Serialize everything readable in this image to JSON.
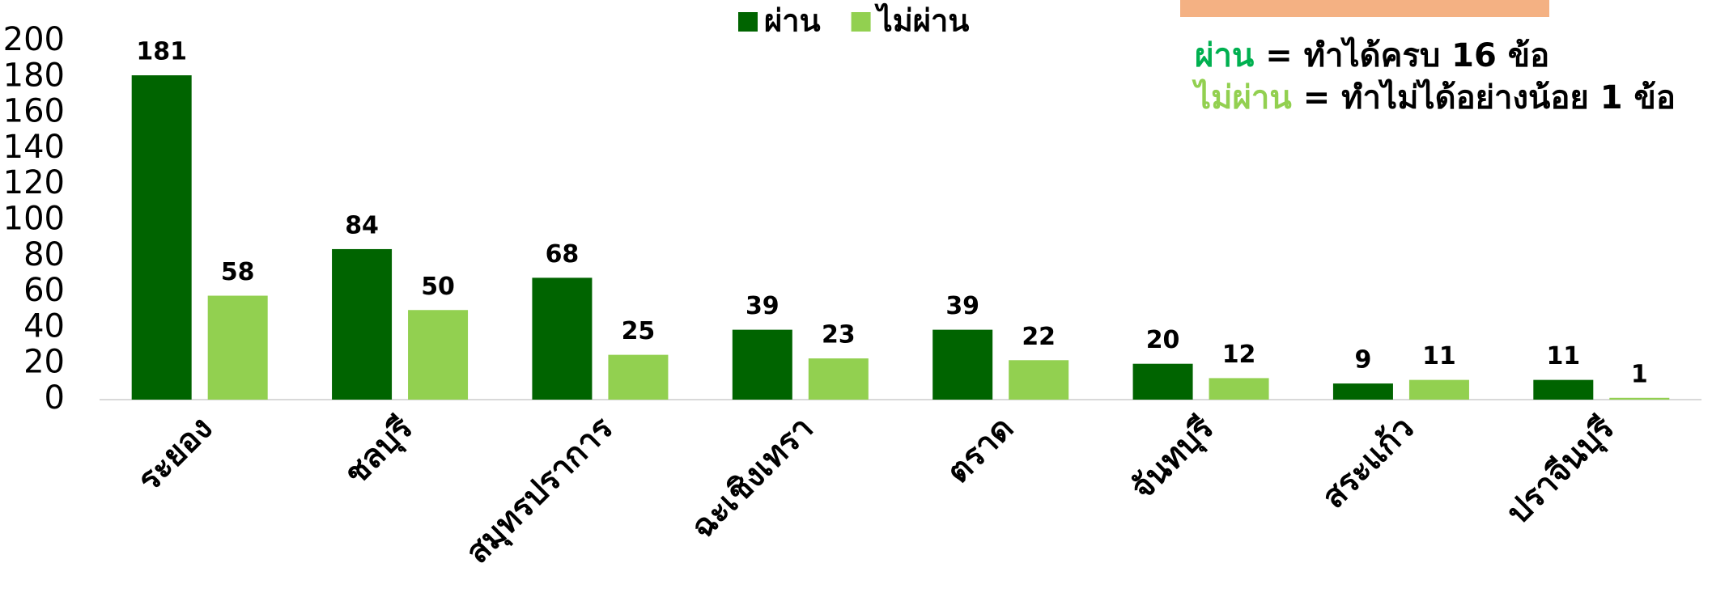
{
  "chart_data": {
    "type": "bar",
    "categories": [
      "ระยอง",
      "ชลบุรี",
      "สมุทรปราการ",
      "ฉะเชิงเทรา",
      "ตราด",
      "จันทบุรี",
      "สระแก้ว",
      "ปราจีนบุรี"
    ],
    "series": [
      {
        "name": "ผ่าน",
        "color": "#006400",
        "values": [
          181,
          84,
          68,
          39,
          39,
          20,
          9,
          11
        ]
      },
      {
        "name": "ไม่ผ่าน",
        "color": "#92d050",
        "values": [
          58,
          50,
          25,
          23,
          22,
          12,
          11,
          1
        ]
      }
    ],
    "ylim": [
      0,
      200
    ],
    "yticks": [
      0,
      20,
      40,
      60,
      80,
      100,
      120,
      140,
      160,
      180,
      200
    ],
    "legend": "top",
    "annotations": [
      {
        "term": "ผ่าน",
        "color": "#00b050",
        "text": "= ทำได้ครบ 16 ข้อ"
      },
      {
        "term": "ไม่ผ่าน",
        "color": "#92d050",
        "text": "= ทำไม่ได้อย่างน้อย 1 ข้อ"
      }
    ]
  }
}
